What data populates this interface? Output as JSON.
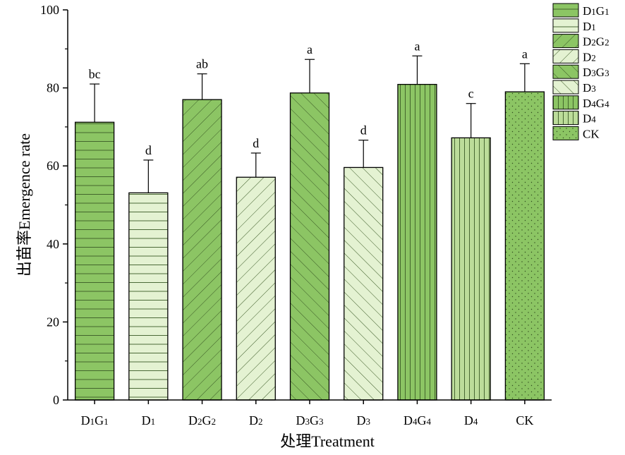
{
  "chart_data": {
    "type": "bar",
    "title": "",
    "xlabel": "处理Treatment",
    "ylabel": "出苗率Emergence rate",
    "ylim": [
      0,
      100
    ],
    "yticks": [
      0,
      20,
      40,
      60,
      80,
      100
    ],
    "grid": false,
    "legend_position": "top-right",
    "categories": [
      {
        "base": "D",
        "sub1": "1",
        "mid": "G",
        "sub2": "1"
      },
      {
        "base": "D",
        "sub1": "1",
        "mid": "",
        "sub2": ""
      },
      {
        "base": "D",
        "sub1": "2",
        "mid": "G",
        "sub2": "2"
      },
      {
        "base": "D",
        "sub1": "2",
        "mid": "",
        "sub2": ""
      },
      {
        "base": "D",
        "sub1": "3",
        "mid": "G",
        "sub2": "3"
      },
      {
        "base": "D",
        "sub1": "3",
        "mid": "",
        "sub2": ""
      },
      {
        "base": "D",
        "sub1": "4",
        "mid": "G",
        "sub2": "4"
      },
      {
        "base": "D",
        "sub1": "4",
        "mid": "",
        "sub2": ""
      },
      {
        "base": "CK",
        "sub1": "",
        "mid": "",
        "sub2": ""
      }
    ],
    "values": [
      71.2,
      53.1,
      77.0,
      57.1,
      78.7,
      59.6,
      80.9,
      67.2,
      79.0
    ],
    "errors": [
      9.8,
      8.4,
      6.6,
      6.2,
      8.6,
      7.0,
      7.3,
      8.8,
      7.2
    ],
    "letters": [
      "bc",
      "d",
      "ab",
      "d",
      "a",
      "d",
      "a",
      "c",
      "a"
    ],
    "patterns": [
      "horizontal",
      "horizontal",
      "diag-down",
      "diag-down",
      "diag-up",
      "diag-up",
      "vertical",
      "vertical",
      "dots"
    ],
    "fills": [
      "#8cc564",
      "#e4f2d2",
      "#8cc564",
      "#e4f2d2",
      "#8cc564",
      "#e4f2d2",
      "#8cc564",
      "#bcdc9a",
      "#8cc564"
    ],
    "colors": {
      "axis": "#000000",
      "bar_stroke": "#000000",
      "pattern_stroke": "#3b5a26"
    }
  }
}
